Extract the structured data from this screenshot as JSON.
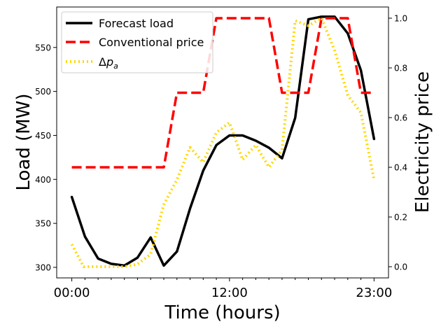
{
  "chart_data": {
    "type": "line",
    "xlabel": "Time (hours)",
    "ylabel_left": "Load (MW)",
    "ylabel_right": "Electricity price",
    "x_hours": [
      0,
      1,
      2,
      3,
      4,
      5,
      6,
      7,
      8,
      9,
      10,
      11,
      12,
      13,
      14,
      15,
      16,
      17,
      18,
      19,
      20,
      21,
      22,
      23
    ],
    "x_tick_labels": [
      {
        "hour": 0,
        "label": "00:00"
      },
      {
        "hour": 12,
        "label": "12:00"
      },
      {
        "hour": 23,
        "label": "23:00"
      }
    ],
    "xlim": [
      -1.15,
      24.1
    ],
    "ylim_left": [
      288,
      596
    ],
    "ylim_right": [
      -0.045,
      1.045
    ],
    "left_ticks": [
      300,
      350,
      400,
      450,
      500,
      550
    ],
    "right_ticks": [
      0.0,
      0.2,
      0.4,
      0.6,
      0.8,
      1.0
    ],
    "right_tick_labels": [
      "0.0",
      "0.2",
      "0.4",
      "0.6",
      "0.8",
      "1.0"
    ],
    "legend": [
      {
        "label": "Forecast load",
        "color": "#000000",
        "style": "solid"
      },
      {
        "label": "Conventional price",
        "color": "#ff0000",
        "style": "dashed"
      },
      {
        "label": "Δp_a",
        "color": "#ffd700",
        "style": "dotted"
      }
    ],
    "legend_location": "top-left",
    "series": [
      {
        "name": "Forecast load",
        "axis": "left",
        "x": [
          0,
          1,
          2,
          3,
          4,
          5,
          6,
          7,
          8,
          9,
          10,
          11,
          12,
          13,
          14,
          15,
          16,
          17,
          18,
          19,
          20,
          21,
          22,
          23
        ],
        "values": [
          380,
          335,
          310,
          304,
          302,
          311,
          334,
          302,
          318,
          367,
          410,
          439,
          450,
          450,
          444,
          436,
          424,
          470,
          582,
          585,
          585,
          566,
          524,
          446
        ]
      },
      {
        "name": "Conventional price",
        "axis": "right",
        "x": [
          0,
          7,
          8,
          10,
          11,
          15,
          16,
          18,
          19,
          21,
          22,
          23
        ],
        "values": [
          0.4,
          0.4,
          0.7,
          0.7,
          1.0,
          1.0,
          0.7,
          0.7,
          1.0,
          1.0,
          0.7,
          0.7
        ]
      },
      {
        "name": "Δp_a",
        "axis": "right",
        "x": [
          0,
          0.9,
          2,
          3,
          4,
          5,
          6,
          7,
          8,
          9,
          10,
          11,
          12,
          13,
          14,
          15,
          16,
          17,
          18,
          19,
          20,
          21,
          22,
          23
        ],
        "values": [
          0.09,
          0.0,
          0.0,
          0.0,
          0.0,
          0.01,
          0.05,
          0.25,
          0.35,
          0.48,
          0.42,
          0.54,
          0.58,
          0.43,
          0.49,
          0.4,
          0.47,
          0.99,
          0.97,
          1.0,
          0.87,
          0.69,
          0.62,
          0.35
        ]
      }
    ]
  }
}
